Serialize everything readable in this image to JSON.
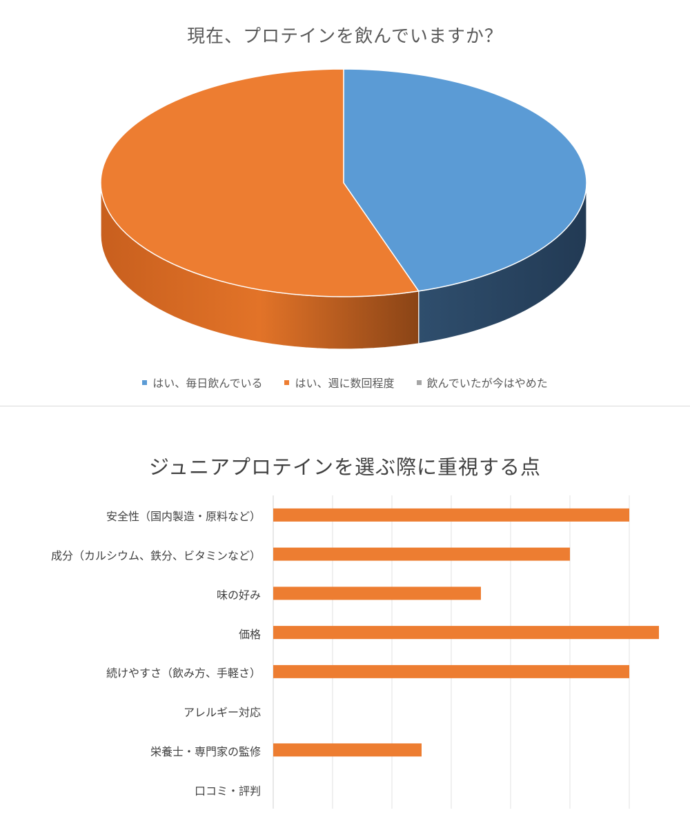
{
  "pie_chart": {
    "title": "現在、プロテインを飲んでいますか？",
    "legend": [
      {
        "label": "はい、毎日飲んでいる",
        "color": "#5b9bd5"
      },
      {
        "label": "はい、週に数回程度",
        "color": "#ed7d31"
      },
      {
        "label": "飲んでいたが今はやめた",
        "color": "#a5a5a5"
      }
    ]
  },
  "bar_chart": {
    "title": "ジュニアプロテインを選ぶ際に重視する点"
  },
  "chart_data": [
    {
      "type": "pie",
      "title": "現在、プロテインを飲んでいますか？",
      "categories": [
        "はい、毎日飲んでいる",
        "はい、週に数回程度",
        "飲んでいたが今はやめた"
      ],
      "values": [
        45,
        55,
        0
      ],
      "colors": [
        "#5b9bd5",
        "#ed7d31",
        "#a5a5a5"
      ],
      "style": "3d",
      "legend": "bottom"
    },
    {
      "type": "bar",
      "orientation": "horizontal",
      "title": "ジュニアプロテインを選ぶ際に重視する点",
      "categories": [
        "安全性（国内製造・原料など）",
        "成分（カルシウム、鉄分、ビタミンなど）",
        "味の好み",
        "価格",
        "続けやすさ（飲み方、手軽さ）",
        "アレルギー対応",
        "栄養士・専門家の監修",
        "口コミ・評判"
      ],
      "values": [
        6,
        5,
        3.5,
        6.5,
        6,
        0,
        2.5,
        0
      ],
      "xlim": [
        0,
        6.5
      ],
      "color": "#ed7d31",
      "grid": true,
      "legend": "none"
    }
  ]
}
